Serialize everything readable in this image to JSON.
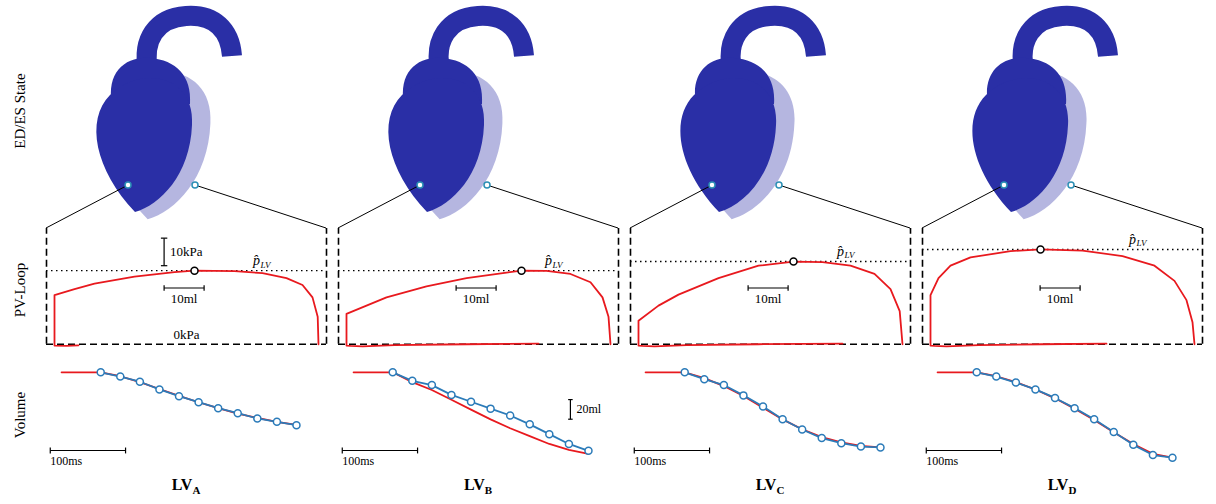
{
  "row_labels": [
    "ED/ES State",
    "PV-Loop",
    "Volume"
  ],
  "chart_data": [
    {
      "type": "line",
      "title": "LV",
      "title_sub": "A",
      "tick_labels": false,
      "pv_loop": {
        "xlim": [
          -2,
          68
        ],
        "ylim": [
          -3,
          42
        ],
        "color": "#e8191e",
        "volume": [
          6,
          3,
          0,
          0,
          5,
          10,
          20,
          30,
          35,
          45,
          52,
          58,
          62,
          64.5,
          65.8,
          66
        ],
        "pressure": [
          -0.4,
          -0.6,
          -0.5,
          17.8,
          20,
          22,
          24.5,
          26.2,
          26.7,
          26.5,
          25.8,
          24,
          21.5,
          17,
          10,
          0
        ],
        "peak_pressure": {
          "label": "p̂",
          "label_sub": "LV",
          "x": 35,
          "value": 26.7,
          "line_style": "dotted"
        },
        "zero_line": {
          "value": 0,
          "label": "0kPa",
          "line_style": "dashed"
        },
        "scale_bars": [
          {
            "axis": "y",
            "value": 10,
            "label": "10kPa"
          },
          {
            "axis": "x",
            "value": 10,
            "label": "10ml"
          }
        ]
      },
      "volume_curve": {
        "xlim": [
          -20,
          320
        ],
        "ylim": [
          2,
          110
        ],
        "series": [
          {
            "color": "#e8191e",
            "x": [
              0,
              52,
              78,
              104,
              130,
              156,
              182,
              208,
              234,
              260,
              286,
              312
            ],
            "values": [
              100,
              100,
              96,
              90,
              83,
              76,
              69.5,
              63.5,
              58,
              53.5,
              49.5,
              46.5
            ]
          },
          {
            "color": "#2b7bb9",
            "marker": "circle",
            "x": [
              52,
              78,
              104,
              130,
              156,
              182,
              208,
              234,
              260,
              286,
              312
            ],
            "values": [
              100,
              95.7,
              90.4,
              82.6,
              75.7,
              69.6,
              63.5,
              58.3,
              53,
              49.6,
              46.1
            ]
          }
        ],
        "scale_bars": [
          {
            "axis": "x",
            "value": 100,
            "label": "100ms"
          }
        ]
      }
    },
    {
      "type": "line",
      "title": "LV",
      "title_sub": "B",
      "tick_labels": false,
      "pv_loop": {
        "xlim": [
          -2,
          68
        ],
        "ylim": [
          -3,
          42
        ],
        "color": "#e8191e",
        "volume": [
          48,
          30,
          12,
          4,
          1,
          0,
          0,
          5,
          10,
          20,
          30,
          40,
          43.75,
          50,
          56,
          61,
          64,
          65.5,
          66
        ],
        "pressure": [
          0.2,
          0,
          -0.3,
          -0.8,
          -0.6,
          -0.5,
          11,
          14,
          17,
          21,
          24,
          26,
          26.7,
          26.6,
          25.5,
          22.5,
          17,
          10,
          0
        ],
        "peak_pressure": {
          "label": "p̂",
          "label_sub": "LV",
          "x": 43.75,
          "value": 26.7,
          "line_style": "dotted"
        },
        "zero_line": {
          "value": 0,
          "line_style": "dashed"
        },
        "scale_bars": [
          {
            "axis": "x",
            "value": 10,
            "label": "10ml"
          }
        ]
      },
      "volume_curve": {
        "xlim": [
          -20,
          320
        ],
        "ylim": [
          2,
          110
        ],
        "series": [
          {
            "color": "#e8191e",
            "x": [
              0,
              52,
              78,
              104,
              130,
              156,
              182,
              208,
              234,
              260,
              286,
              312
            ],
            "values": [
              100,
              100,
              90,
              82,
              72,
              62,
              52,
              43,
              35,
              27,
              21,
              17
            ]
          },
          {
            "color": "#2b7bb9",
            "marker": "circle",
            "x": [
              52,
              78,
              104,
              130,
              156,
              182,
              208,
              234,
              260,
              286,
              312
            ],
            "values": [
              100,
              91.3,
              87,
              77,
              70,
              63,
              56,
              47,
              37,
              27,
              20
            ]
          }
        ],
        "scale_bars": [
          {
            "axis": "x",
            "value": 100,
            "label": "100ms"
          },
          {
            "axis": "y",
            "value": 20,
            "label": "20ml"
          }
        ]
      }
    },
    {
      "type": "line",
      "title": "LV",
      "title_sub": "C",
      "tick_labels": false,
      "pv_loop": {
        "xlim": [
          -2,
          68
        ],
        "ylim": [
          -3,
          42
        ],
        "color": "#e8191e",
        "volume": [
          51,
          30,
          12,
          4,
          1,
          0,
          0,
          5,
          10,
          20,
          30,
          38.75,
          46,
          53,
          59,
          63,
          65.3,
          66
        ],
        "pressure": [
          0.2,
          0,
          -0.3,
          -0.8,
          -0.6,
          -0.5,
          8.5,
          14,
          18,
          24,
          28.5,
          30,
          29.8,
          28.5,
          25.5,
          20,
          12,
          0
        ],
        "peak_pressure": {
          "label": "p̂",
          "label_sub": "LV",
          "x": 38.75,
          "value": 30,
          "line_style": "dotted"
        },
        "zero_line": {
          "value": 0,
          "line_style": "dashed"
        },
        "scale_bars": [
          {
            "axis": "x",
            "value": 10,
            "label": "10ml"
          }
        ]
      },
      "volume_curve": {
        "xlim": [
          -20,
          320
        ],
        "ylim": [
          2,
          110
        ],
        "series": [
          {
            "color": "#e8191e",
            "x": [
              0,
              52,
              78,
              104,
              130,
              156,
              182,
              208,
              234,
              260,
              286,
              312
            ],
            "values": [
              100,
              100,
              94,
              86,
              76,
              64,
              52,
              42,
              34,
              28.5,
              25,
              23.5
            ]
          },
          {
            "color": "#2b7bb9",
            "marker": "circle",
            "x": [
              52,
              78,
              104,
              130,
              156,
              182,
              208,
              234,
              260,
              286,
              312
            ],
            "values": [
              100,
              93,
              87,
              76.5,
              65.2,
              52.2,
              41.7,
              33,
              27.8,
              24.3,
              23.5
            ]
          }
        ],
        "scale_bars": [
          {
            "axis": "x",
            "value": 100,
            "label": "100ms"
          }
        ]
      }
    },
    {
      "type": "line",
      "title": "LV",
      "title_sub": "D",
      "tick_labels": false,
      "pv_loop": {
        "xlim": [
          -2,
          68
        ],
        "ylim": [
          -3,
          42
        ],
        "color": "#e8191e",
        "volume": [
          44,
          28,
          12,
          4,
          1,
          0,
          0,
          2,
          5,
          10,
          20,
          27.5,
          38,
          48,
          56,
          61,
          64,
          65.5,
          66
        ],
        "pressure": [
          0.2,
          0,
          -0.3,
          -0.8,
          -0.6,
          -0.5,
          17.8,
          24,
          28.5,
          31.5,
          33.8,
          34.4,
          34,
          32,
          28.5,
          23,
          16,
          8,
          0
        ],
        "peak_pressure": {
          "label": "p̂",
          "label_sub": "LV",
          "x": 27.5,
          "value": 34.4,
          "line_style": "dotted"
        },
        "zero_line": {
          "value": 0,
          "line_style": "dashed"
        },
        "scale_bars": [
          {
            "axis": "x",
            "value": 10,
            "label": "10ml"
          }
        ]
      },
      "volume_curve": {
        "xlim": [
          -20,
          320
        ],
        "ylim": [
          2,
          110
        ],
        "series": [
          {
            "color": "#e8191e",
            "x": [
              0,
              52,
              78,
              104,
              130,
              156,
              182,
              208,
              234,
              260,
              286,
              312
            ],
            "values": [
              100,
              100,
              96,
              90,
              82.5,
              73.5,
              63,
              51.5,
              39,
              27,
              17,
              13
            ]
          },
          {
            "color": "#2b7bb9",
            "marker": "circle",
            "x": [
              52,
              78,
              104,
              130,
              156,
              182,
              208,
              234,
              260,
              286,
              312
            ],
            "values": [
              100,
              95.7,
              89.6,
              82.6,
              73.9,
              63.5,
              52.2,
              39.1,
              26.1,
              15.7,
              13
            ]
          }
        ],
        "scale_bars": [
          {
            "axis": "x",
            "value": 100,
            "label": "100ms"
          }
        ]
      }
    }
  ]
}
